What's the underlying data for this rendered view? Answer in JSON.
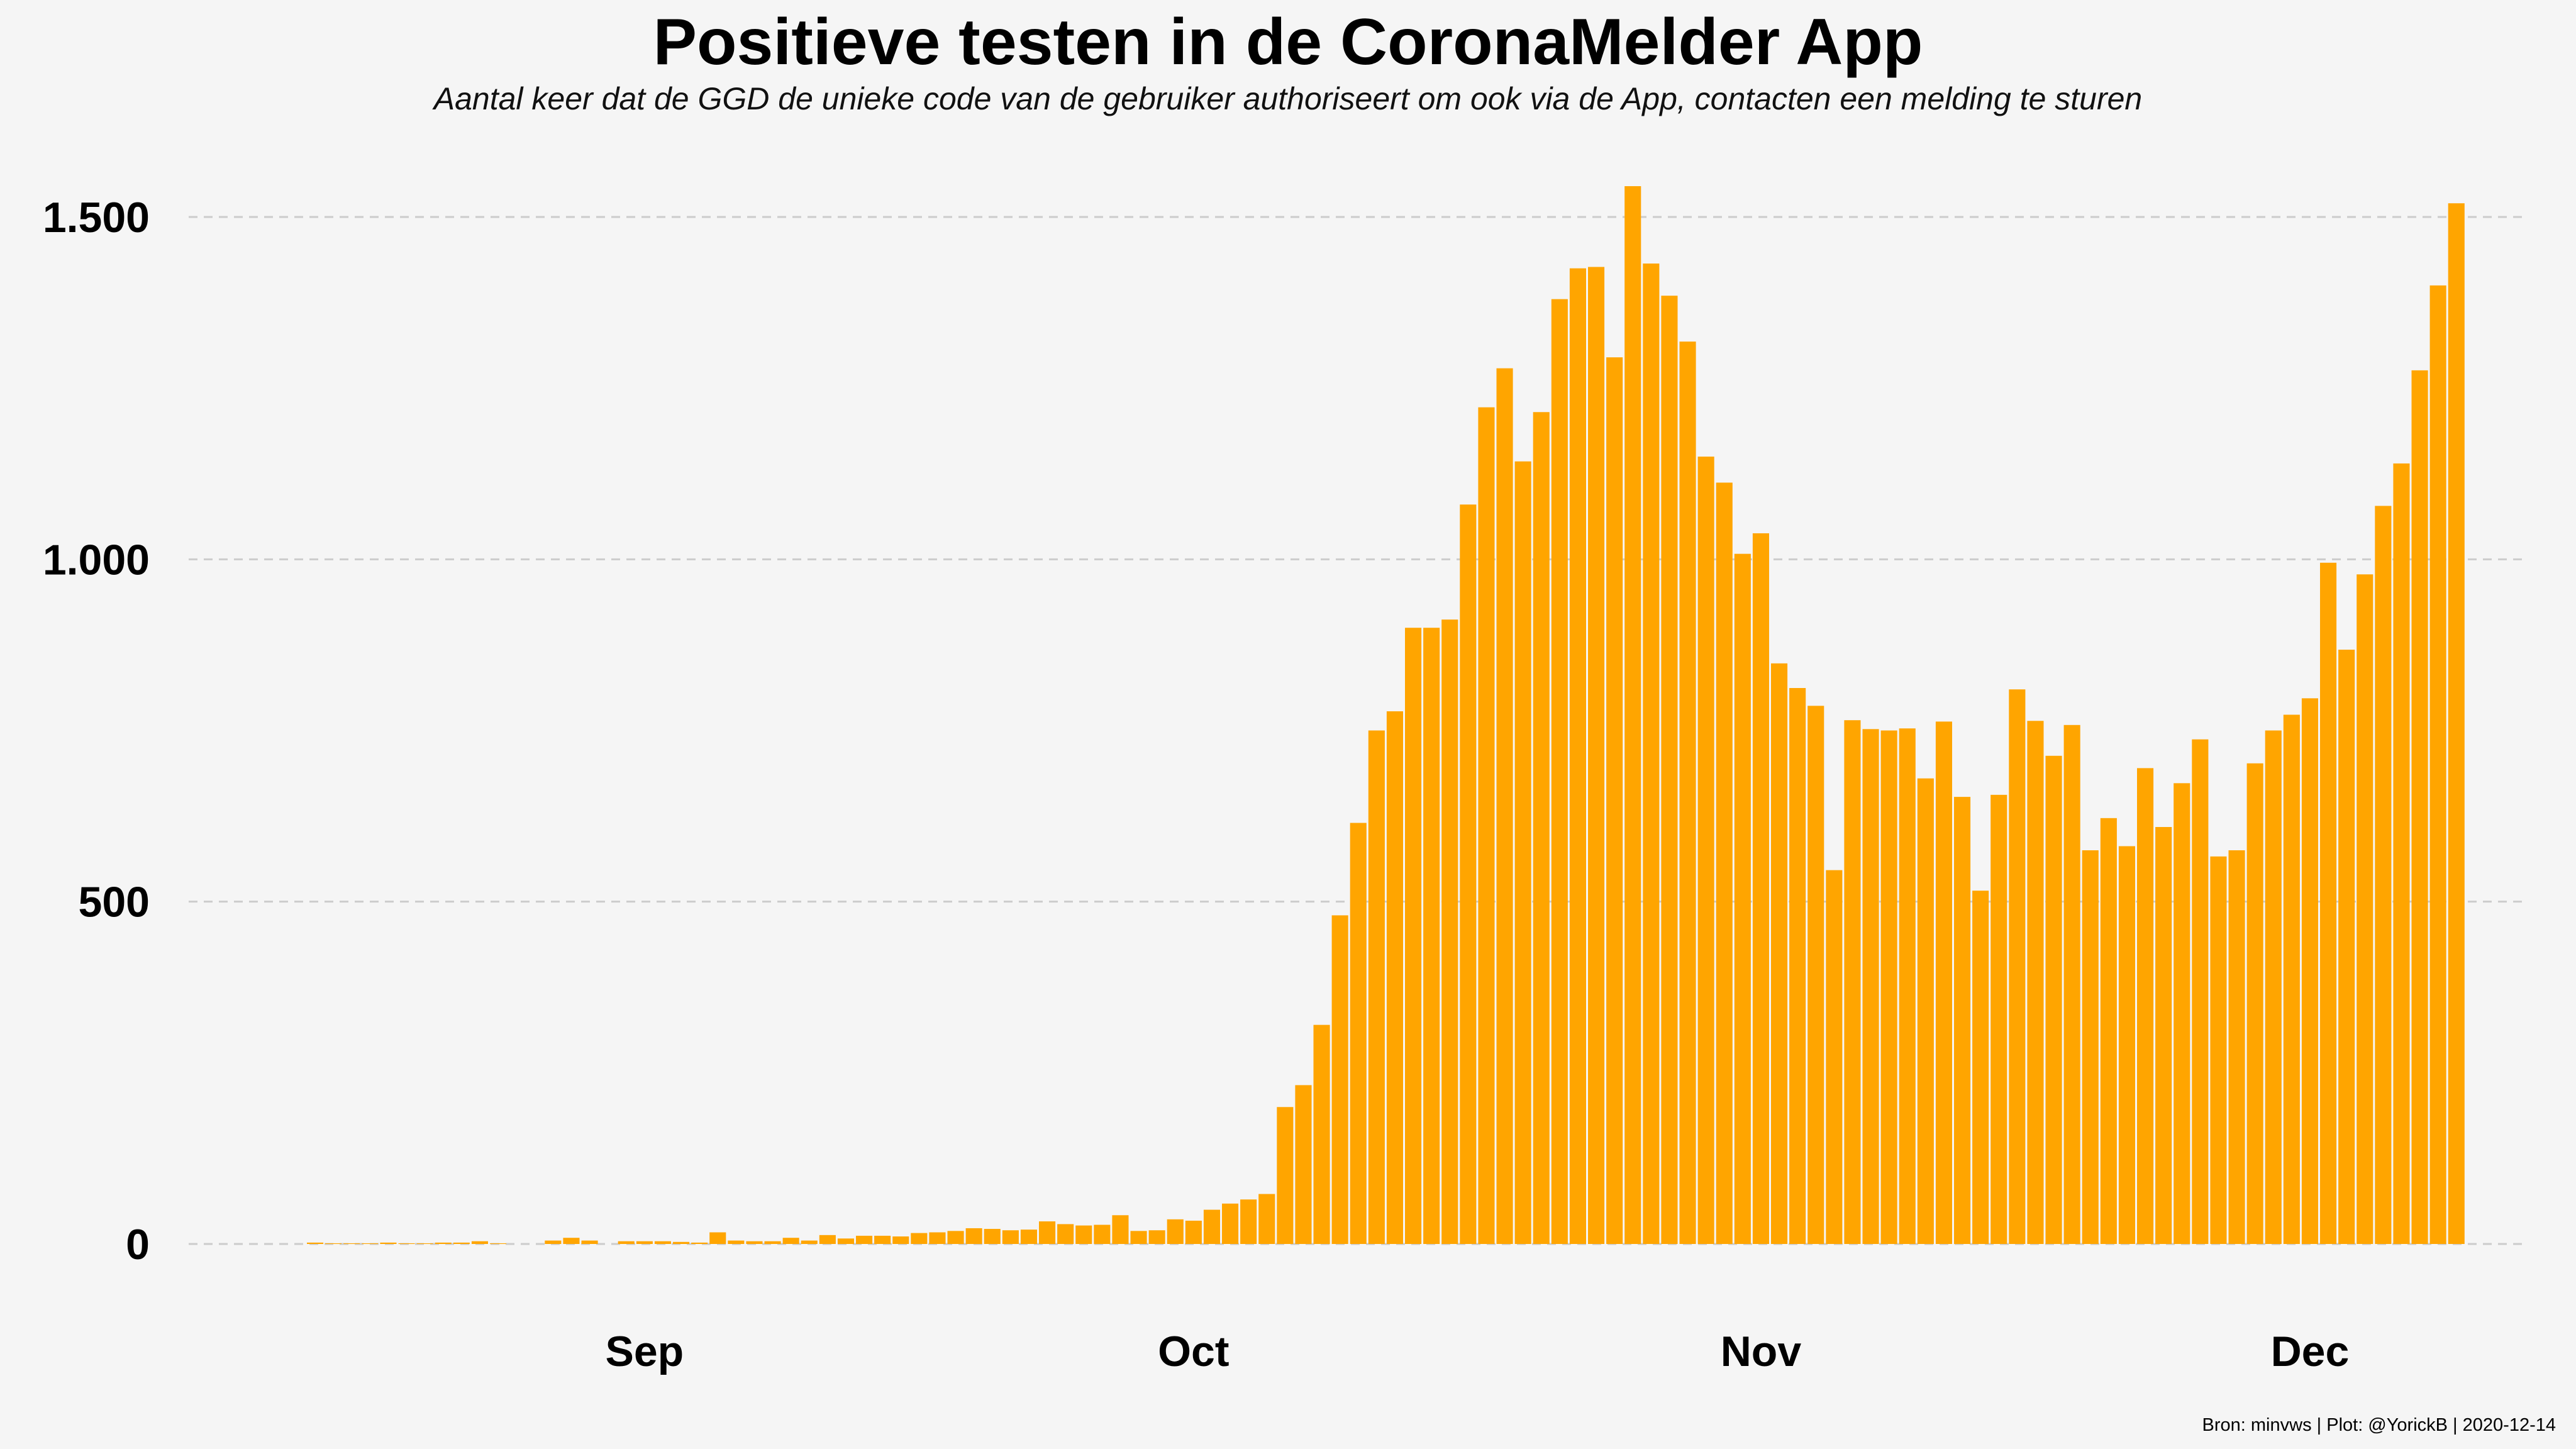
{
  "chart_data": {
    "type": "bar",
    "title": "Positieve testen in de CoronaMelder App",
    "subtitle": "Aantal keer dat de GGD de unieke code van de gebruiker authoriseert om ook via de App, contacten een melding te sturen",
    "caption": "Bron: minvws | Plot: @YorickB |  2020-12-14",
    "xlabel": "",
    "ylabel": "",
    "ylim": [
      0,
      1550
    ],
    "y_ticks": [
      0,
      500,
      1000,
      1500
    ],
    "y_tick_labels": [
      "0",
      "500",
      "1.000",
      "1.500"
    ],
    "x_ticks": [
      {
        "label": "Sep",
        "day_index": 18
      },
      {
        "label": "Oct",
        "day_index": 48
      },
      {
        "label": "Nov",
        "day_index": 79
      },
      {
        "label": "Dec",
        "day_index": 109
      }
    ],
    "bar_color": "#FFA500",
    "grid_color": "#cccccc",
    "values": [
      2,
      1,
      1,
      1,
      2,
      1,
      1,
      2,
      2,
      4,
      1,
      0,
      0,
      5,
      9,
      5,
      0,
      4,
      4,
      4,
      3,
      2,
      17,
      5,
      4,
      4,
      9,
      5,
      13,
      8,
      12,
      12,
      11,
      16,
      17,
      19,
      23,
      22,
      20,
      21,
      33,
      29,
      27,
      28,
      42,
      19,
      20,
      36,
      34,
      50,
      59,
      65,
      73,
      200,
      232,
      320,
      480,
      615,
      750,
      778,
      900,
      900,
      912,
      1080,
      1222,
      1279,
      1143,
      1215,
      1380,
      1425,
      1427,
      1295,
      1545,
      1432,
      1385,
      1318,
      1150,
      1112,
      1008,
      1038,
      848,
      812,
      786,
      546,
      765,
      752,
      750,
      753,
      680,
      763,
      653,
      516,
      656,
      810,
      764,
      713,
      758,
      575,
      622,
      581,
      695,
      609,
      673,
      737,
      566,
      575,
      702,
      750,
      773,
      797,
      995,
      868,
      978,
      1078,
      1140,
      1276,
      1400,
      1520
    ]
  }
}
